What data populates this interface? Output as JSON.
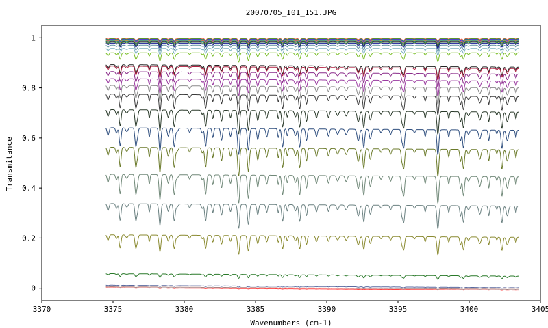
{
  "chart_data": {
    "type": "line",
    "title": "20070705_I01_151.JPG",
    "xlabel": "Wavenumbers (cm-1)",
    "ylabel": "Transmitance",
    "xlim": [
      3370,
      3405
    ],
    "ylim": [
      -0.05,
      1.05
    ],
    "x_ticks": [
      "3370",
      "3375",
      "3380",
      "3385",
      "3390",
      "3395",
      "3400",
      "3405"
    ],
    "y_ticks": [
      "0",
      "0.2",
      "0.4",
      "0.6",
      "0.8",
      "1"
    ],
    "x_range_of_data": [
      3374.5,
      3403.5
    ],
    "grid": false,
    "legend": "none",
    "series": [
      {
        "baseline": 0.998,
        "absorption_scale": 0.01,
        "color": "#ff5a5a"
      },
      {
        "baseline": 0.996,
        "absorption_scale": 0.012,
        "color": "#22aa22"
      },
      {
        "baseline": 0.994,
        "absorption_scale": 0.012,
        "color": "#3344dd"
      },
      {
        "baseline": 0.992,
        "absorption_scale": 0.014,
        "color": "#aa33aa"
      },
      {
        "baseline": 0.99,
        "absorption_scale": 0.015,
        "color": "#dd9922"
      },
      {
        "baseline": 0.988,
        "absorption_scale": 0.016,
        "color": "#22aaaa"
      },
      {
        "baseline": 0.986,
        "absorption_scale": 0.017,
        "color": "#444444"
      },
      {
        "baseline": 0.982,
        "absorption_scale": 0.019,
        "color": "#2b6f2b"
      },
      {
        "baseline": 0.978,
        "absorption_scale": 0.02,
        "color": "#1a1a99"
      },
      {
        "baseline": 0.97,
        "absorption_scale": 0.024,
        "color": "#5f8fa0"
      },
      {
        "baseline": 0.958,
        "absorption_scale": 0.027,
        "color": "#7ab0c0"
      },
      {
        "baseline": 0.94,
        "absorption_scale": 0.035,
        "color": "#7cbf2a"
      },
      {
        "baseline": 0.893,
        "absorption_scale": 0.045,
        "color": "#222222"
      },
      {
        "baseline": 0.887,
        "absorption_scale": 0.046,
        "color": "#b02040"
      },
      {
        "baseline": 0.865,
        "absorption_scale": 0.052,
        "color": "#8a2b8a"
      },
      {
        "baseline": 0.837,
        "absorption_scale": 0.06,
        "color": "#9a3aa0"
      },
      {
        "baseline": 0.81,
        "absorption_scale": 0.066,
        "color": "#8a8a8a"
      },
      {
        "baseline": 0.775,
        "absorption_scale": 0.073,
        "color": "#3a3a3a"
      },
      {
        "baseline": 0.713,
        "absorption_scale": 0.088,
        "color": "#2a3a2a"
      },
      {
        "baseline": 0.641,
        "absorption_scale": 0.098,
        "color": "#2e4e7e"
      },
      {
        "baseline": 0.563,
        "absorption_scale": 0.105,
        "color": "#6b7a2a"
      },
      {
        "baseline": 0.455,
        "absorption_scale": 0.105,
        "color": "#708878"
      },
      {
        "baseline": 0.338,
        "absorption_scale": 0.09,
        "color": "#6a8080"
      },
      {
        "baseline": 0.213,
        "absorption_scale": 0.07,
        "color": "#8a8a30"
      },
      {
        "baseline": 0.058,
        "absorption_scale": 0.015,
        "color": "#2a7a2a"
      },
      {
        "baseline": 0.012,
        "absorption_scale": 0.004,
        "color": "#5a6aa0"
      },
      {
        "baseline": 0.006,
        "absorption_scale": 0.003,
        "color": "#aa8080"
      },
      {
        "baseline": 0.002,
        "absorption_scale": 0.002,
        "color": "#ff4444"
      }
    ]
  }
}
